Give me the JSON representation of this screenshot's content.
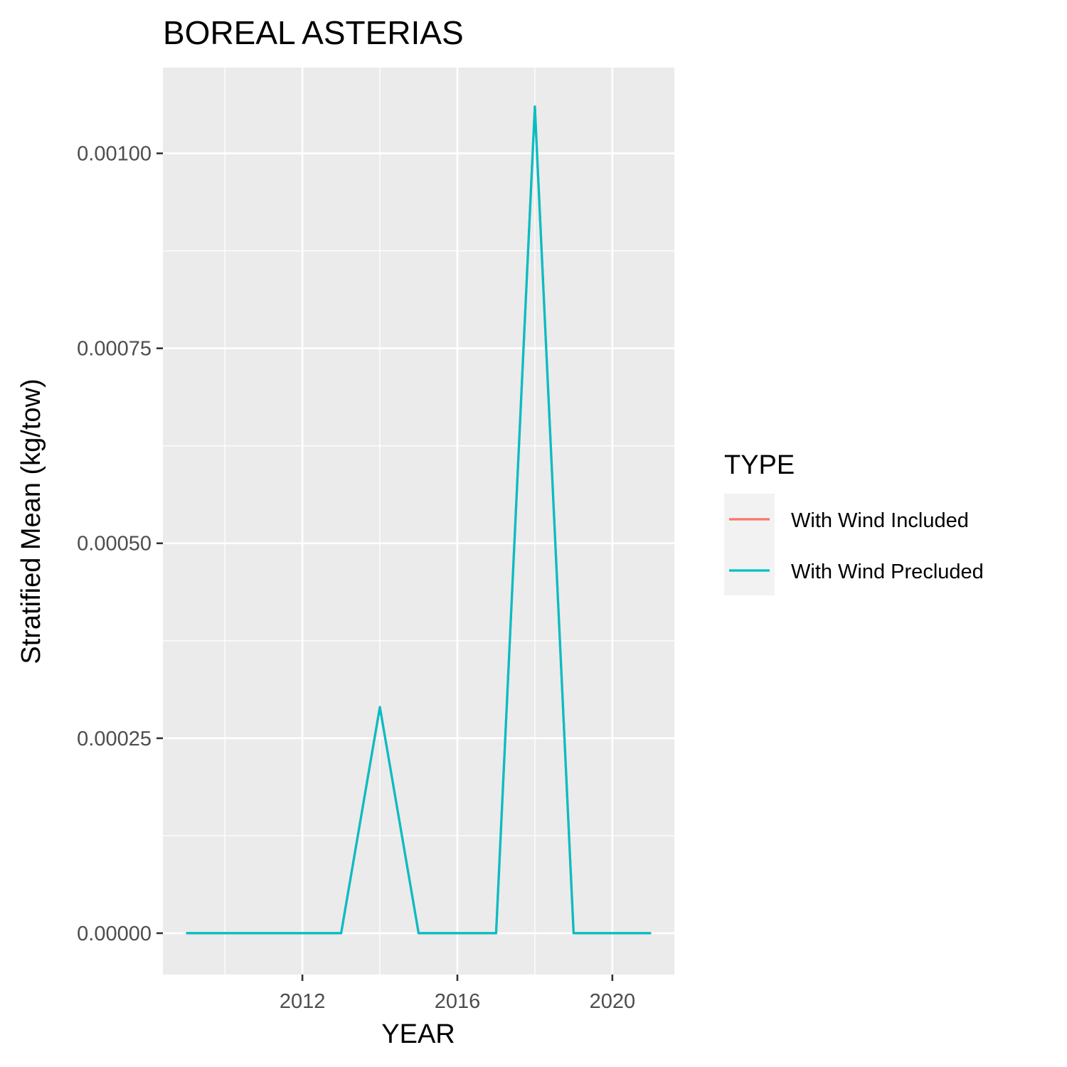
{
  "chart_data": {
    "type": "line",
    "title": "BOREAL ASTERIAS",
    "xlabel": "YEAR",
    "ylabel": "Stratified Mean (kg/tow)",
    "x": [
      2009,
      2010,
      2011,
      2012,
      2013,
      2014,
      2015,
      2016,
      2017,
      2018,
      2019,
      2020,
      2021
    ],
    "series": [
      {
        "name": "With Wind Included",
        "color": "#F8766D",
        "values": [
          0,
          0,
          0,
          0,
          0,
          0.00029,
          0,
          0,
          0,
          0.00106,
          0,
          0,
          0
        ]
      },
      {
        "name": "With Wind Precluded",
        "color": "#00BFC4",
        "values": [
          0,
          0,
          0,
          0,
          0,
          0.00029,
          0,
          0,
          0,
          0.00106,
          0,
          0,
          0
        ]
      }
    ],
    "xlim": [
      2008.4,
      2021.6
    ],
    "ylim": [
      -5.3e-05,
      0.00111
    ],
    "x_ticks": [
      2012,
      2016,
      2020
    ],
    "x_tick_labels": [
      "2012",
      "2016",
      "2020"
    ],
    "y_ticks": [
      0,
      0.00025,
      0.0005,
      0.00075,
      0.001
    ],
    "y_tick_labels": [
      "0.00000",
      "0.00025",
      "0.00050",
      "0.00075",
      "0.00100"
    ],
    "legend_title": "TYPE",
    "legend_position": "right",
    "grid": true,
    "panel_background": "#EBEBEB"
  }
}
